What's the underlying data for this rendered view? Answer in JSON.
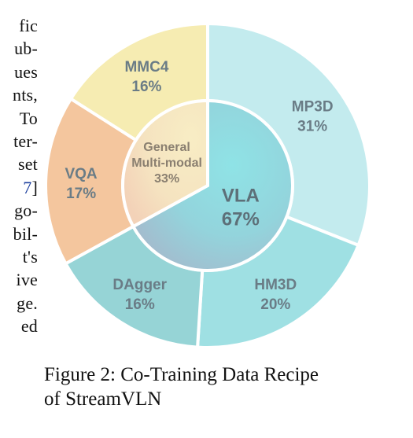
{
  "left_text": {
    "lines": [
      "fic",
      "ub-",
      "ues",
      "nts,",
      "To",
      "ter-",
      "set",
      "7]",
      "go-",
      "bil-",
      "t's",
      "ive",
      "ge.",
      "ed"
    ],
    "cite_line_index": 7
  },
  "chart_data": {
    "type": "pie",
    "inner": [
      {
        "label": "VLA",
        "pct": "67%",
        "value": 67,
        "color": "#86dbe0"
      },
      {
        "label": "General Multi-modal",
        "pct": "33%",
        "value": 33,
        "color": "#f6e7c0"
      }
    ],
    "outer": [
      {
        "label": "MP3D",
        "pct": "31%",
        "value": 31,
        "color": "#c3ebee"
      },
      {
        "label": "HM3D",
        "pct": "20%",
        "value": 20,
        "color": "#9fe0e3"
      },
      {
        "label": "DAgger",
        "pct": "16%",
        "value": 16,
        "color": "#96d4d6"
      },
      {
        "label": "VQA",
        "pct": "17%",
        "value": 17,
        "color": "#f4c69e"
      },
      {
        "label": "MMC4",
        "pct": "16%",
        "value": 16,
        "color": "#f6ecb2"
      }
    ],
    "label_colors": {
      "outer": "#6a7c86",
      "inner_vla": "#5d6f78",
      "inner_general": "#8a7f70"
    }
  },
  "caption": {
    "line1": "Figure 2: Co-Training Data Recipe",
    "line2": "of StreamVLN"
  }
}
